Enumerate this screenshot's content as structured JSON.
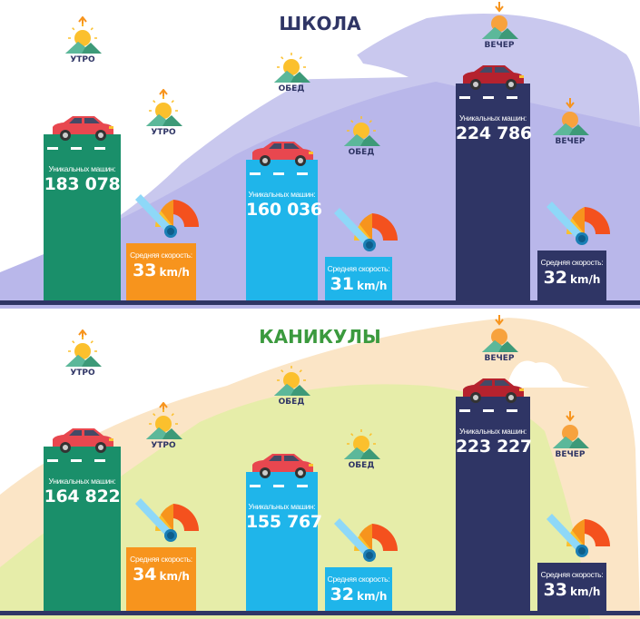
{
  "colors": {
    "green": "#1a8f6a",
    "orange": "#f7941d",
    "blue": "#1fb5ea",
    "navy": "#2f3565",
    "car_red": "#e8474f",
    "car_dark": "#b5222e"
  },
  "unique_label": "Уникальных машин:",
  "speed_label": "Средняя скорость:",
  "speed_unit": "km/h",
  "chart_data": [
    {
      "type": "bar",
      "title": "ШКОЛА",
      "title_color": "#2f3565",
      "categories": [
        "УТРО",
        "ОБЕД",
        "ВЕЧЕР"
      ],
      "unique_cars": [
        "183 078",
        "160 036",
        "224 786"
      ],
      "avg_speed": [
        "33",
        "31",
        "32"
      ],
      "series": [
        {
          "name": "Уникальных машин:",
          "values": [
            183078,
            160036,
            224786
          ]
        },
        {
          "name": "Средняя скорость:",
          "values": [
            33,
            31,
            32
          ]
        }
      ]
    },
    {
      "type": "bar",
      "title": "КАНИКУЛЫ",
      "title_color": "#3b9a3e",
      "categories": [
        "УТРО",
        "ОБЕД",
        "ВЕЧЕР"
      ],
      "unique_cars": [
        "164 822",
        "155 767",
        "223 227"
      ],
      "avg_speed": [
        "34",
        "32",
        "33"
      ],
      "series": [
        {
          "name": "Уникальных машин:",
          "values": [
            164822,
            155767,
            223227
          ]
        },
        {
          "name": "Средняя скорость:",
          "values": [
            34,
            32,
            33
          ]
        }
      ]
    }
  ]
}
